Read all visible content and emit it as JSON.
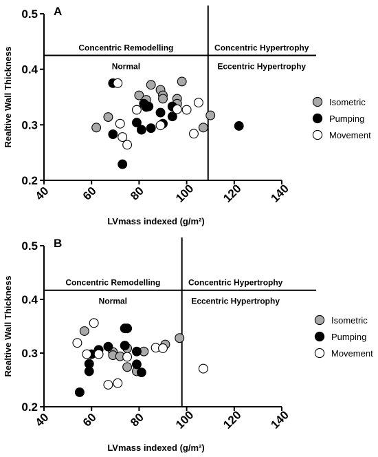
{
  "colors": {
    "isometric": "#a9a9a9",
    "pumping": "#000000",
    "movement": "#ffffff"
  },
  "chart_data": [
    {
      "type": "scatter",
      "panel_label": "A",
      "xlabel": "LVmass indexed (g/m²)",
      "ylabel": "Realtive Wall Thickness",
      "xlim": [
        40,
        140
      ],
      "ylim": [
        0.2,
        0.5
      ],
      "xticks": [
        40,
        60,
        80,
        100,
        120,
        140
      ],
      "yticks": [
        0.2,
        0.3,
        0.4,
        0.5
      ],
      "reference_lines": {
        "horizontal_y": 0.425,
        "vertical_x": 109
      },
      "region_labels": {
        "top_left": "Concentric Remodelling",
        "top_right": "Concentric Hypertrophy",
        "bottom_left": "Normal",
        "bottom_right": "Eccentric Hypertrophy"
      },
      "legend_position": "right",
      "series": [
        {
          "name": "Isometric",
          "marker": "filled-grey-circle",
          "x": [
            62,
            67,
            80,
            83,
            85,
            89,
            90,
            90,
            94,
            96,
            96,
            98,
            107,
            110
          ],
          "y": [
            0.295,
            0.314,
            0.353,
            0.345,
            0.372,
            0.363,
            0.353,
            0.347,
            0.333,
            0.347,
            0.338,
            0.378,
            0.295,
            0.317
          ]
        },
        {
          "name": "Pumping",
          "marker": "filled-black-circle",
          "x": [
            69,
            69,
            73,
            79,
            81,
            82,
            83,
            84,
            85,
            89,
            90,
            94,
            94,
            122
          ],
          "y": [
            0.375,
            0.283,
            0.229,
            0.304,
            0.291,
            0.338,
            0.332,
            0.333,
            0.294,
            0.322,
            0.302,
            0.333,
            0.315,
            0.298
          ]
        },
        {
          "name": "Movement",
          "marker": "open-circle",
          "x": [
            71,
            72,
            73,
            75,
            79,
            89,
            96,
            100,
            103,
            105
          ],
          "y": [
            0.375,
            0.302,
            0.278,
            0.264,
            0.327,
            0.299,
            0.328,
            0.327,
            0.284,
            0.34
          ]
        }
      ]
    },
    {
      "type": "scatter",
      "panel_label": "B",
      "xlabel": "LVmass indexed (g/m²)",
      "ylabel": "Realtive Wall Thickness",
      "xlim": [
        40,
        140
      ],
      "ylim": [
        0.2,
        0.5
      ],
      "xticks": [
        40,
        60,
        80,
        100,
        120,
        140
      ],
      "yticks": [
        0.2,
        0.3,
        0.4,
        0.5
      ],
      "reference_lines": {
        "horizontal_y": 0.417,
        "vertical_x": 98
      },
      "region_labels": {
        "top_left": "Concentric Remodelling",
        "top_right": "Concentric Hypertrophy",
        "bottom_left": "Normal",
        "bottom_right": "Eccentric Hypertrophy"
      },
      "legend_position": "right",
      "series": [
        {
          "name": "Isometric",
          "marker": "filled-grey-circle",
          "x": [
            57,
            69,
            69,
            72,
            75,
            75,
            79,
            82,
            91,
            97
          ],
          "y": [
            0.341,
            0.302,
            0.296,
            0.294,
            0.309,
            0.274,
            0.266,
            0.303,
            0.316,
            0.328
          ]
        },
        {
          "name": "Pumping",
          "marker": "filled-black-circle",
          "x": [
            55,
            59,
            59,
            60,
            63,
            67,
            74,
            74,
            75,
            79,
            79,
            81
          ],
          "y": [
            0.227,
            0.266,
            0.28,
            0.298,
            0.306,
            0.312,
            0.346,
            0.314,
            0.346,
            0.303,
            0.279,
            0.264
          ]
        },
        {
          "name": "Movement",
          "marker": "open-circle",
          "x": [
            54,
            58,
            61,
            63,
            67,
            71,
            75,
            87,
            90,
            107
          ],
          "y": [
            0.319,
            0.298,
            0.356,
            0.298,
            0.241,
            0.244,
            0.293,
            0.31,
            0.309,
            0.271
          ]
        }
      ]
    }
  ]
}
